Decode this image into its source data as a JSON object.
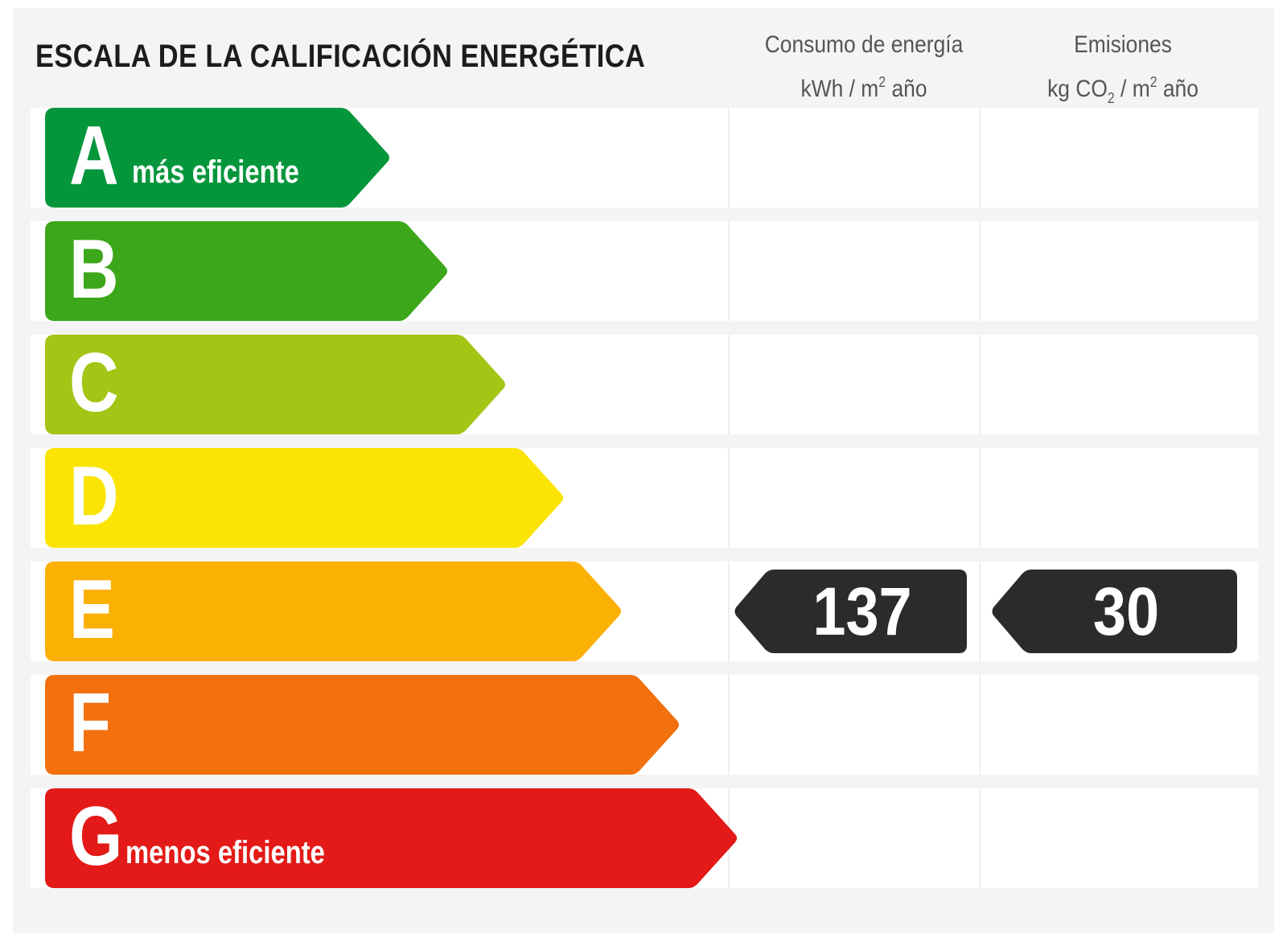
{
  "title": "ESCALA DE LA CALIFICACIÓN ENERGÉTICA",
  "columns": {
    "consumo": {
      "line1": "Consumo de energía",
      "unit_a": "kWh / m",
      "unit_sup": "2",
      "unit_b": " año"
    },
    "emisiones": {
      "line1": "Emisiones",
      "unit_a": "kg CO",
      "unit_sub": "2",
      "unit_b": " / m",
      "unit_sup": "2",
      "unit_c": " año"
    }
  },
  "ratings": [
    {
      "letter": "A",
      "label": "más eficiente",
      "color": "#05963b"
    },
    {
      "letter": "B",
      "label": "",
      "color": "#3ca71a"
    },
    {
      "letter": "C",
      "label": "",
      "color": "#a3c516"
    },
    {
      "letter": "D",
      "label": "",
      "color": "#fbe404"
    },
    {
      "letter": "E",
      "label": "",
      "color": "#fbb004"
    },
    {
      "letter": "F",
      "label": "",
      "color": "#f2700d"
    },
    {
      "letter": "G",
      "label": "menos eficiente",
      "color": "#e31a17"
    }
  ],
  "result": {
    "rating": "E",
    "consumo_value": "137",
    "emisiones_value": "30",
    "marker_color": "#2b2b2b"
  }
}
